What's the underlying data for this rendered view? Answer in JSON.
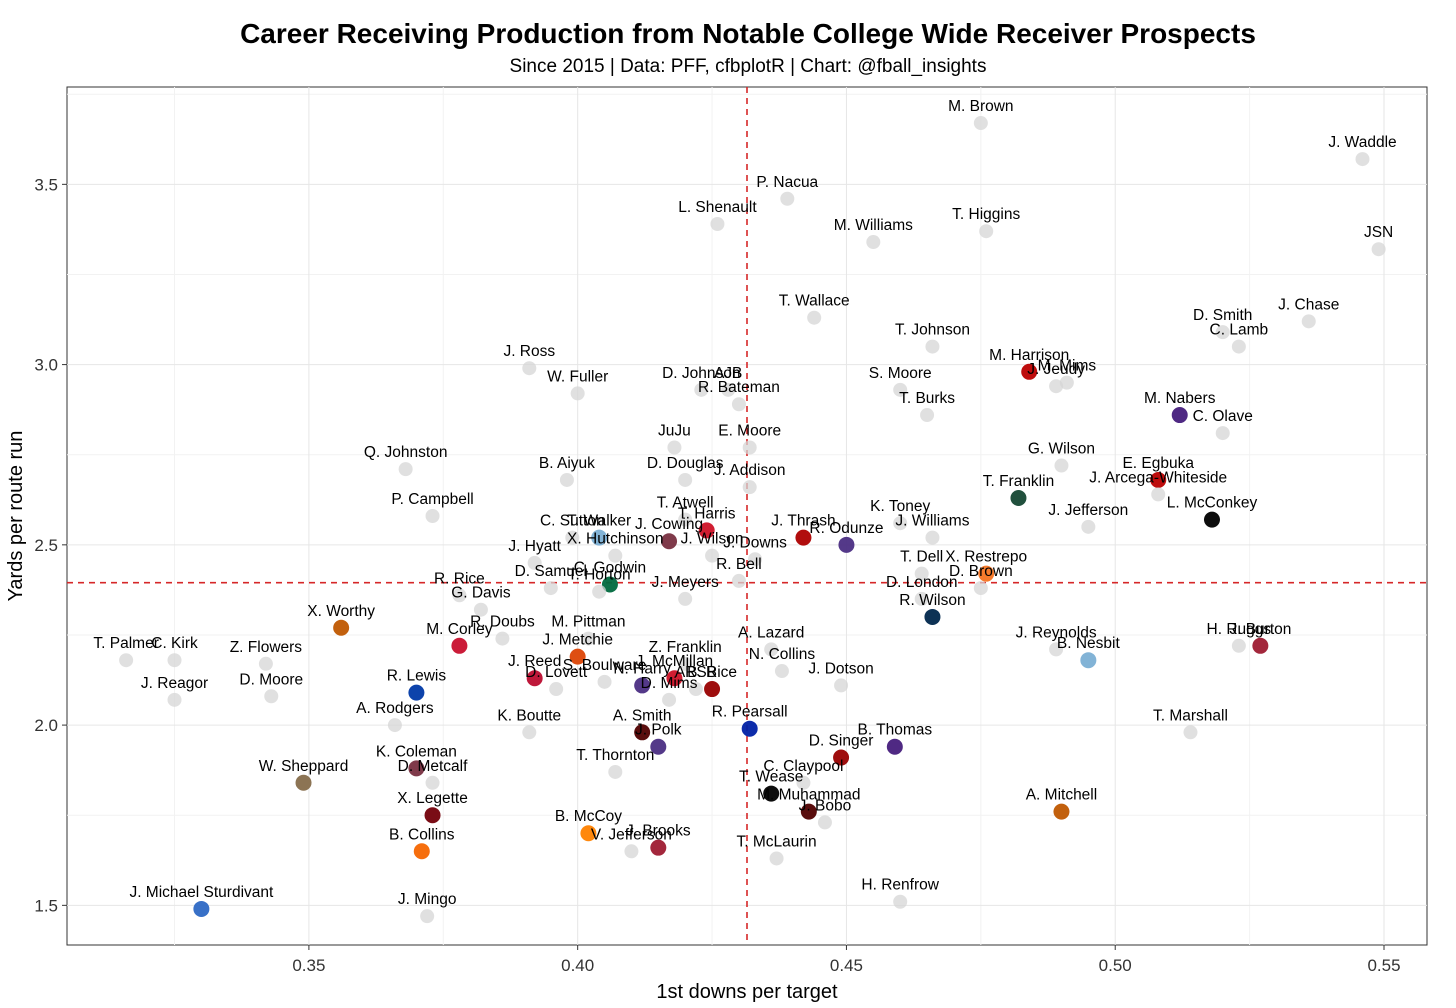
{
  "chart_data": {
    "type": "scatter",
    "title": "Career Receiving Production from Notable College Wide Receiver Prospects",
    "subtitle": "Since 2015 | Data: PFF, cfbplotR | Chart: @fball_insights",
    "xlabel": "1st downs per target",
    "ylabel": "Yards per route run",
    "xlim": [
      0.305,
      0.558
    ],
    "ylim": [
      1.39,
      3.77
    ],
    "xticks": [
      "0.35",
      "0.40",
      "0.45",
      "0.50",
      "0.55"
    ],
    "yticks": [
      "1.5",
      "2.0",
      "2.5",
      "3.0",
      "3.5"
    ],
    "grid": true,
    "reference_lines": {
      "x": 0.4315,
      "y": 2.395,
      "color": "#d62728",
      "style": "dashed"
    },
    "points": [
      {
        "label": "M. Brown",
        "x": 0.475,
        "y": 3.67,
        "highlight": false
      },
      {
        "label": "J. Waddle",
        "x": 0.546,
        "y": 3.57,
        "highlight": false
      },
      {
        "label": "P. Nacua",
        "x": 0.439,
        "y": 3.46,
        "highlight": false
      },
      {
        "label": "T. Higgins",
        "x": 0.476,
        "y": 3.37,
        "highlight": false
      },
      {
        "label": "L. Shenault",
        "x": 0.426,
        "y": 3.39,
        "highlight": false
      },
      {
        "label": "M. Williams",
        "x": 0.455,
        "y": 3.34,
        "highlight": false
      },
      {
        "label": "JSN",
        "x": 0.549,
        "y": 3.32,
        "highlight": false
      },
      {
        "label": "J. Chase",
        "x": 0.536,
        "y": 3.12,
        "highlight": false
      },
      {
        "label": "D. Smith",
        "x": 0.52,
        "y": 3.09,
        "highlight": false
      },
      {
        "label": "T. Wallace",
        "x": 0.444,
        "y": 3.13,
        "highlight": false
      },
      {
        "label": "T. Johnson",
        "x": 0.466,
        "y": 3.05,
        "highlight": false
      },
      {
        "label": "C. Lamb",
        "x": 0.523,
        "y": 3.05,
        "highlight": false
      },
      {
        "label": "M. Harrison",
        "x": 0.484,
        "y": 2.98,
        "highlight": true,
        "color": "#bb0000"
      },
      {
        "label": "M. Mims",
        "x": 0.491,
        "y": 2.95,
        "highlight": false
      },
      {
        "label": "J. Ross",
        "x": 0.391,
        "y": 2.99,
        "highlight": false
      },
      {
        "label": "D. Johnson",
        "x": 0.423,
        "y": 2.93,
        "highlight": false
      },
      {
        "label": "AJB",
        "x": 0.428,
        "y": 2.93,
        "highlight": false
      },
      {
        "label": "S. Moore",
        "x": 0.46,
        "y": 2.93,
        "highlight": false
      },
      {
        "label": "J. Jeudy",
        "x": 0.489,
        "y": 2.94,
        "highlight": false
      },
      {
        "label": "W. Fuller",
        "x": 0.4,
        "y": 2.92,
        "highlight": false
      },
      {
        "label": "R. Bateman",
        "x": 0.43,
        "y": 2.89,
        "highlight": false
      },
      {
        "label": "M. Nabers",
        "x": 0.512,
        "y": 2.86,
        "highlight": true,
        "color": "#461d7c"
      },
      {
        "label": "T. Burks",
        "x": 0.465,
        "y": 2.86,
        "highlight": false
      },
      {
        "label": "JuJu",
        "x": 0.418,
        "y": 2.77,
        "highlight": false
      },
      {
        "label": "E. Moore",
        "x": 0.432,
        "y": 2.77,
        "highlight": false
      },
      {
        "label": "C. Olave",
        "x": 0.52,
        "y": 2.81,
        "highlight": false
      },
      {
        "label": "Q. Johnston",
        "x": 0.368,
        "y": 2.71,
        "highlight": false
      },
      {
        "label": "G. Wilson",
        "x": 0.49,
        "y": 2.72,
        "highlight": false
      },
      {
        "label": "B. Aiyuk",
        "x": 0.398,
        "y": 2.68,
        "highlight": false
      },
      {
        "label": "D. Douglas",
        "x": 0.42,
        "y": 2.68,
        "highlight": false
      },
      {
        "label": "E. Egbuka",
        "x": 0.508,
        "y": 2.68,
        "highlight": true,
        "color": "#bb0000"
      },
      {
        "label": "J. Addison",
        "x": 0.432,
        "y": 2.66,
        "highlight": false
      },
      {
        "label": "T. Franklin",
        "x": 0.482,
        "y": 2.63,
        "highlight": true,
        "color": "#154733"
      },
      {
        "label": "J. Arcega-Whiteside",
        "x": 0.508,
        "y": 2.64,
        "highlight": false
      },
      {
        "label": "P. Campbell",
        "x": 0.373,
        "y": 2.58,
        "highlight": false
      },
      {
        "label": "T. Atwell",
        "x": 0.42,
        "y": 2.57,
        "highlight": false
      },
      {
        "label": "T. Walker",
        "x": 0.404,
        "y": 2.52,
        "highlight": true,
        "color": "#7bafd4"
      },
      {
        "label": "J. Cowing",
        "x": 0.417,
        "y": 2.51,
        "highlight": true,
        "color": "#782f40"
      },
      {
        "label": "T. Harris",
        "x": 0.424,
        "y": 2.54,
        "highlight": true,
        "color": "#ce1126"
      },
      {
        "label": "J. Thrash",
        "x": 0.442,
        "y": 2.52,
        "highlight": true,
        "color": "#ad0000"
      },
      {
        "label": "K. Toney",
        "x": 0.46,
        "y": 2.56,
        "highlight": false
      },
      {
        "label": "J. Williams",
        "x": 0.466,
        "y": 2.52,
        "highlight": false
      },
      {
        "label": "J. Jefferson",
        "x": 0.495,
        "y": 2.55,
        "highlight": false
      },
      {
        "label": "L. McConkey",
        "x": 0.518,
        "y": 2.57,
        "highlight": true,
        "color": "#000000"
      },
      {
        "label": "C. Sutton",
        "x": 0.399,
        "y": 2.52,
        "highlight": false
      },
      {
        "label": "J. Wilson",
        "x": 0.425,
        "y": 2.47,
        "highlight": false
      },
      {
        "label": "R. Odunze",
        "x": 0.45,
        "y": 2.5,
        "highlight": true,
        "color": "#4b2e83"
      },
      {
        "label": "J. Hyatt",
        "x": 0.392,
        "y": 2.45,
        "highlight": false
      },
      {
        "label": "X. Hutchinson",
        "x": 0.407,
        "y": 2.47,
        "highlight": false
      },
      {
        "label": "J. Downs",
        "x": 0.433,
        "y": 2.46,
        "highlight": false
      },
      {
        "label": "X. Restrepo",
        "x": 0.476,
        "y": 2.42,
        "highlight": true,
        "color": "#f47321"
      },
      {
        "label": "T. Dell",
        "x": 0.464,
        "y": 2.42,
        "highlight": false
      },
      {
        "label": "D. Samuel",
        "x": 0.395,
        "y": 2.38,
        "highlight": false
      },
      {
        "label": "C. Godwin",
        "x": 0.406,
        "y": 2.39,
        "highlight": true,
        "color": "#00693e"
      },
      {
        "label": "R. Bell",
        "x": 0.43,
        "y": 2.4,
        "highlight": false
      },
      {
        "label": "D. Brown",
        "x": 0.475,
        "y": 2.38,
        "highlight": false
      },
      {
        "label": "R. Rice",
        "x": 0.378,
        "y": 2.36,
        "highlight": false
      },
      {
        "label": "D. London",
        "x": 0.464,
        "y": 2.35,
        "highlight": false
      },
      {
        "label": "T. Horton",
        "x": 0.404,
        "y": 2.37,
        "highlight": false
      },
      {
        "label": "J. Meyers",
        "x": 0.42,
        "y": 2.35,
        "highlight": false
      },
      {
        "label": "X. Worthy",
        "x": 0.356,
        "y": 2.27,
        "highlight": true,
        "color": "#bf5700"
      },
      {
        "label": "G. Davis",
        "x": 0.382,
        "y": 2.32,
        "highlight": false
      },
      {
        "label": "R. Wilson",
        "x": 0.466,
        "y": 2.3,
        "highlight": true,
        "color": "#00274c"
      },
      {
        "label": "R. Doubs",
        "x": 0.386,
        "y": 2.24,
        "highlight": false
      },
      {
        "label": "M. Pittman",
        "x": 0.402,
        "y": 2.24,
        "highlight": false
      },
      {
        "label": "M. Corley",
        "x": 0.378,
        "y": 2.22,
        "highlight": true,
        "color": "#c8102e"
      },
      {
        "label": "J. Metchie",
        "x": 0.4,
        "y": 2.19,
        "highlight": true,
        "color": "#dc4405"
      },
      {
        "label": "T. Palmer",
        "x": 0.316,
        "y": 2.18,
        "highlight": false
      },
      {
        "label": "A. Lazard",
        "x": 0.436,
        "y": 2.21,
        "highlight": false
      },
      {
        "label": "Z. Franklin",
        "x": 0.42,
        "y": 2.17,
        "highlight": false
      },
      {
        "label": "J. Reynolds",
        "x": 0.489,
        "y": 2.21,
        "highlight": false
      },
      {
        "label": "H. Ruggs",
        "x": 0.523,
        "y": 2.22,
        "highlight": false
      },
      {
        "label": "J. Burton",
        "x": 0.527,
        "y": 2.22,
        "highlight": true,
        "color": "#9e1b32"
      },
      {
        "label": "Z. Flowers",
        "x": 0.342,
        "y": 2.17,
        "highlight": false
      },
      {
        "label": "C. Kirk",
        "x": 0.325,
        "y": 2.18,
        "highlight": false
      },
      {
        "label": "N. Collins",
        "x": 0.438,
        "y": 2.15,
        "highlight": false
      },
      {
        "label": "B. Nesbit",
        "x": 0.495,
        "y": 2.18,
        "highlight": true,
        "color": "#7bafd4"
      },
      {
        "label": "J. Reed",
        "x": 0.392,
        "y": 2.13,
        "highlight": true,
        "color": "#ba0c2f"
      },
      {
        "label": "S. Boulware",
        "x": 0.405,
        "y": 2.12,
        "highlight": false
      },
      {
        "label": "J. McMillan",
        "x": 0.418,
        "y": 2.13,
        "highlight": true,
        "color": "#ce1126"
      },
      {
        "label": "ARSB",
        "x": 0.422,
        "y": 2.1,
        "highlight": false
      },
      {
        "label": "D. Moore",
        "x": 0.343,
        "y": 2.08,
        "highlight": false
      },
      {
        "label": "J. Dotson",
        "x": 0.449,
        "y": 2.11,
        "highlight": false
      },
      {
        "label": "D. Lovett",
        "x": 0.396,
        "y": 2.1,
        "highlight": false
      },
      {
        "label": "N. Harry",
        "x": 0.412,
        "y": 2.11,
        "highlight": true,
        "color": "#4b2e83"
      },
      {
        "label": "B. Rice",
        "x": 0.425,
        "y": 2.1,
        "highlight": true,
        "color": "#990000"
      },
      {
        "label": "J. Reagor",
        "x": 0.325,
        "y": 2.07,
        "highlight": false
      },
      {
        "label": "R. Lewis",
        "x": 0.37,
        "y": 2.09,
        "highlight": true,
        "color": "#0039a6"
      },
      {
        "label": "T. Marshall",
        "x": 0.514,
        "y": 1.98,
        "highlight": false
      },
      {
        "label": "D. Mims",
        "x": 0.417,
        "y": 2.07,
        "highlight": false
      },
      {
        "label": "R. Pearsall",
        "x": 0.432,
        "y": 1.99,
        "highlight": true,
        "color": "#0021a5"
      },
      {
        "label": "K. Boutte",
        "x": 0.391,
        "y": 1.98,
        "highlight": false
      },
      {
        "label": "A. Rodgers",
        "x": 0.366,
        "y": 2.0,
        "highlight": false
      },
      {
        "label": "A. Smith",
        "x": 0.412,
        "y": 1.98,
        "highlight": true,
        "color": "#500000"
      },
      {
        "label": "J. Polk",
        "x": 0.415,
        "y": 1.94,
        "highlight": true,
        "color": "#4b2e83"
      },
      {
        "label": "B. Thomas",
        "x": 0.459,
        "y": 1.94,
        "highlight": true,
        "color": "#461d7c"
      },
      {
        "label": "D. Singer",
        "x": 0.449,
        "y": 1.91,
        "highlight": true,
        "color": "#990000"
      },
      {
        "label": "K. Coleman",
        "x": 0.37,
        "y": 1.88,
        "highlight": true,
        "color": "#782f40"
      },
      {
        "label": "C. Claypool",
        "x": 0.442,
        "y": 1.84,
        "highlight": false
      },
      {
        "label": "W. Sheppard",
        "x": 0.349,
        "y": 1.84,
        "highlight": true,
        "color": "#866d4b"
      },
      {
        "label": "T. Thornton",
        "x": 0.407,
        "y": 1.87,
        "highlight": false
      },
      {
        "label": "T. Wease",
        "x": 0.436,
        "y": 1.81,
        "highlight": true,
        "color": "#000000"
      },
      {
        "label": "D. Metcalf",
        "x": 0.373,
        "y": 1.84,
        "highlight": false
      },
      {
        "label": "M. Muhammad",
        "x": 0.443,
        "y": 1.76,
        "highlight": true,
        "color": "#500000"
      },
      {
        "label": "A. Mitchell",
        "x": 0.49,
        "y": 1.76,
        "highlight": true,
        "color": "#bf5700"
      },
      {
        "label": "X. Legette",
        "x": 0.373,
        "y": 1.75,
        "highlight": true,
        "color": "#73000a"
      },
      {
        "label": "J. Bobo",
        "x": 0.446,
        "y": 1.73,
        "highlight": false
      },
      {
        "label": "B. McCoy",
        "x": 0.402,
        "y": 1.7,
        "highlight": true,
        "color": "#ff8200"
      },
      {
        "label": "J. Brooks",
        "x": 0.415,
        "y": 1.66,
        "highlight": true,
        "color": "#9e1b32"
      },
      {
        "label": "B. Collins",
        "x": 0.371,
        "y": 1.65,
        "highlight": true,
        "color": "#f56600"
      },
      {
        "label": "V. Jefferson",
        "x": 0.41,
        "y": 1.65,
        "highlight": false
      },
      {
        "label": "T. McLaurin",
        "x": 0.437,
        "y": 1.63,
        "highlight": false
      },
      {
        "label": "H. Renfrow",
        "x": 0.46,
        "y": 1.51,
        "highlight": false
      },
      {
        "label": "J. Mingo",
        "x": 0.372,
        "y": 1.47,
        "highlight": false
      },
      {
        "label": "J. Michael Sturdivant",
        "x": 0.33,
        "y": 1.49,
        "highlight": true,
        "color": "#2d68c4"
      }
    ]
  }
}
